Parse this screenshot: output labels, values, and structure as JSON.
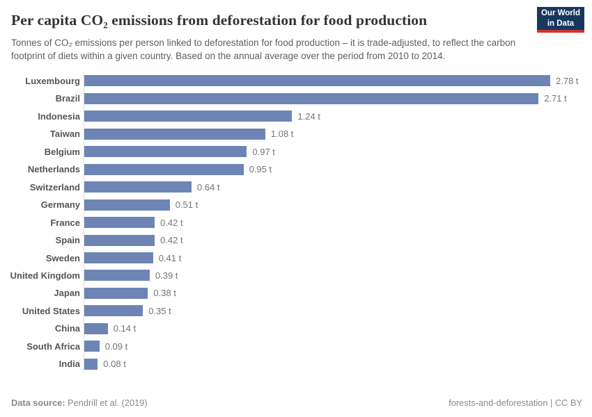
{
  "header": {
    "title": "Per capita CO₂ emissions from deforestation for food production",
    "subtitle": "Tonnes of CO₂ emissions per person linked to deforestation for food production – it is trade-adjusted, to reflect the carbon footprint of diets within a given country. Based on the annual average over the period from 2010 to 2014.",
    "logo": {
      "line1": "Our World",
      "line2": "in Data"
    }
  },
  "chart_data": {
    "type": "bar",
    "orientation": "horizontal",
    "title": "Per capita CO₂ emissions from deforestation for food production",
    "categories": [
      "Luxembourg",
      "Brazil",
      "Indonesia",
      "Taiwan",
      "Belgium",
      "Netherlands",
      "Switzerland",
      "Germany",
      "France",
      "Spain",
      "Sweden",
      "United Kingdom",
      "Japan",
      "United States",
      "China",
      "South Africa",
      "India"
    ],
    "values": [
      2.78,
      2.71,
      1.24,
      1.08,
      0.97,
      0.95,
      0.64,
      0.51,
      0.42,
      0.42,
      0.41,
      0.39,
      0.38,
      0.35,
      0.14,
      0.09,
      0.08
    ],
    "value_labels": [
      "2.78 t",
      "2.71 t",
      "1.24 t",
      "1.08 t",
      "0.97 t",
      "0.95 t",
      "0.64 t",
      "0.51 t",
      "0.42 t",
      "0.42 t",
      "0.41 t",
      "0.39 t",
      "0.38 t",
      "0.35 t",
      "0.14 t",
      "0.09 t",
      "0.08 t"
    ],
    "unit": "t",
    "xlim": [
      0,
      2.78
    ],
    "grid": false,
    "legend": "none",
    "bar_color": "#6d84b4",
    "axis_line_color": "#dcdcdc"
  },
  "footer": {
    "datasource_label": "Data source:",
    "datasource_value": " Pendrill et al. (2019)",
    "right_text": "forests-and-deforestation | CC BY"
  }
}
